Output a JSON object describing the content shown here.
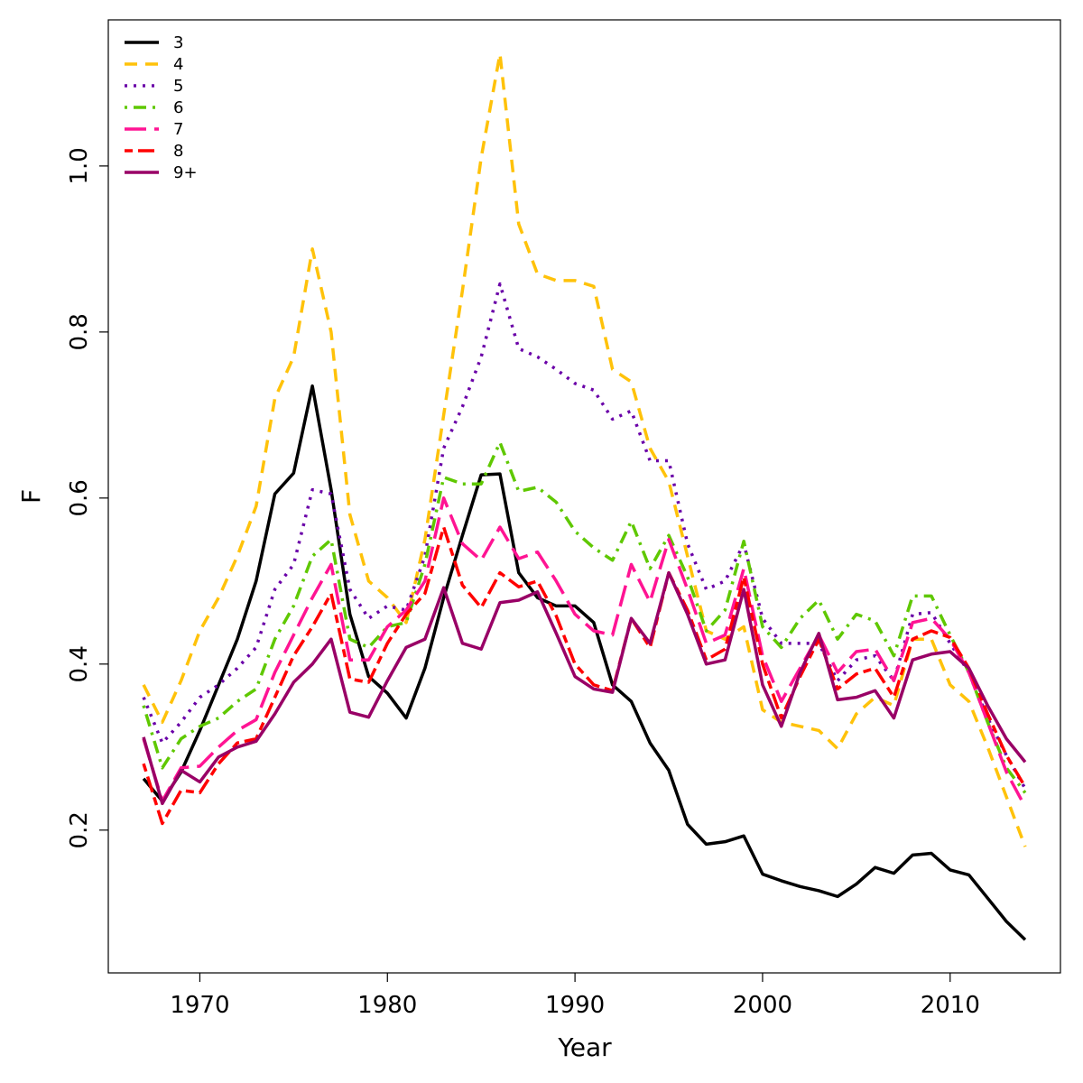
{
  "chart_data": {
    "type": "line",
    "x_label": "Year",
    "y_label": "F",
    "x": [
      1967,
      1968,
      1969,
      1970,
      1971,
      1972,
      1973,
      1974,
      1975,
      1976,
      1977,
      1978,
      1979,
      1980,
      1981,
      1982,
      1983,
      1984,
      1985,
      1986,
      1987,
      1988,
      1989,
      1990,
      1991,
      1992,
      1993,
      1994,
      1995,
      1996,
      1997,
      1998,
      1999,
      2000,
      2001,
      2002,
      2003,
      2004,
      2005,
      2006,
      2007,
      2008,
      2009,
      2010,
      2011,
      2012,
      2013,
      2014
    ],
    "xlim": [
      1965.12,
      2015.88
    ],
    "xticks": [
      1970,
      1980,
      1990,
      2000,
      2010
    ],
    "ylim": [
      0.028,
      1.176
    ],
    "yticks": [
      0.2,
      0.4,
      0.6,
      0.8,
      {
        "value": 1,
        "label": "1.0"
      }
    ],
    "legend": "top-left",
    "series": [
      {
        "name": "3",
        "color": "#000000",
        "linestyle": "solid",
        "values": [
          0.262,
          0.235,
          0.27,
          0.32,
          0.375,
          0.43,
          0.5,
          0.605,
          0.63,
          0.735,
          0.61,
          0.46,
          0.385,
          0.365,
          0.335,
          0.395,
          0.48,
          0.555,
          0.628,
          0.629,
          0.51,
          0.48,
          0.47,
          0.47,
          0.45,
          0.375,
          0.355,
          0.305,
          0.272,
          0.207,
          0.183,
          0.186,
          0.193,
          0.147,
          0.139,
          0.132,
          0.127,
          0.12,
          0.135,
          0.155,
          0.148,
          0.17,
          0.172,
          0.152,
          0.146,
          0.118,
          0.09,
          0.068
        ]
      },
      {
        "name": "4",
        "color": "#FFC20A",
        "linestyle": "dashed",
        "values": [
          0.375,
          0.33,
          0.38,
          0.44,
          0.48,
          0.53,
          0.59,
          0.72,
          0.77,
          0.9,
          0.8,
          0.58,
          0.5,
          0.48,
          0.45,
          0.55,
          0.7,
          0.85,
          1.01,
          1.135,
          0.93,
          0.87,
          0.862,
          0.862,
          0.855,
          0.755,
          0.74,
          0.66,
          0.62,
          0.53,
          0.44,
          0.43,
          0.445,
          0.345,
          0.33,
          0.325,
          0.32,
          0.298,
          0.34,
          0.36,
          0.35,
          0.43,
          0.43,
          0.375,
          0.355,
          0.3,
          0.24,
          0.18
        ]
      },
      {
        "name": "5",
        "color": "#6A00A8",
        "linestyle": "dotted",
        "values": [
          0.36,
          0.305,
          0.33,
          0.36,
          0.375,
          0.395,
          0.42,
          0.49,
          0.52,
          0.61,
          0.605,
          0.49,
          0.455,
          0.47,
          0.465,
          0.53,
          0.66,
          0.71,
          0.77,
          0.858,
          0.78,
          0.77,
          0.755,
          0.738,
          0.73,
          0.695,
          0.705,
          0.645,
          0.645,
          0.545,
          0.49,
          0.5,
          0.545,
          0.455,
          0.425,
          0.425,
          0.425,
          0.38,
          0.405,
          0.41,
          0.38,
          0.46,
          0.462,
          0.425,
          0.39,
          0.335,
          0.29,
          0.25
        ]
      },
      {
        "name": "6",
        "color": "#5FC800",
        "linestyle": "dotdash",
        "values": [
          0.35,
          0.275,
          0.31,
          0.325,
          0.335,
          0.355,
          0.37,
          0.43,
          0.47,
          0.53,
          0.55,
          0.43,
          0.42,
          0.445,
          0.45,
          0.52,
          0.625,
          0.617,
          0.617,
          0.667,
          0.608,
          0.613,
          0.595,
          0.56,
          0.54,
          0.525,
          0.572,
          0.515,
          0.555,
          0.505,
          0.44,
          0.465,
          0.548,
          0.445,
          0.42,
          0.455,
          0.477,
          0.43,
          0.46,
          0.452,
          0.41,
          0.482,
          0.482,
          0.435,
          0.39,
          0.33,
          0.275,
          0.245
        ]
      },
      {
        "name": "7",
        "color": "#FF1493",
        "linestyle": "longdash",
        "values": [
          0.31,
          0.235,
          0.275,
          0.277,
          0.3,
          0.32,
          0.333,
          0.39,
          0.435,
          0.48,
          0.52,
          0.405,
          0.405,
          0.445,
          0.465,
          0.5,
          0.6,
          0.545,
          0.525,
          0.565,
          0.527,
          0.535,
          0.5,
          0.46,
          0.44,
          0.435,
          0.52,
          0.475,
          0.55,
          0.49,
          0.425,
          0.435,
          0.515,
          0.41,
          0.355,
          0.395,
          0.435,
          0.39,
          0.415,
          0.418,
          0.38,
          0.45,
          0.455,
          0.43,
          0.39,
          0.33,
          0.27,
          0.228
        ]
      },
      {
        "name": "8",
        "color": "#FF0000",
        "linestyle": "twodash",
        "values": [
          0.28,
          0.208,
          0.248,
          0.245,
          0.28,
          0.305,
          0.31,
          0.36,
          0.41,
          0.445,
          0.485,
          0.382,
          0.378,
          0.425,
          0.46,
          0.485,
          0.565,
          0.495,
          0.468,
          0.51,
          0.493,
          0.5,
          0.458,
          0.4,
          0.375,
          0.368,
          0.455,
          0.42,
          0.51,
          0.465,
          0.405,
          0.418,
          0.505,
          0.4,
          0.335,
          0.385,
          0.43,
          0.37,
          0.388,
          0.395,
          0.36,
          0.43,
          0.44,
          0.432,
          0.395,
          0.34,
          0.29,
          0.252
        ]
      },
      {
        "name": "9+",
        "color": "#990066",
        "linestyle": "solid",
        "values": [
          0.312,
          0.232,
          0.272,
          0.258,
          0.288,
          0.3,
          0.307,
          0.34,
          0.378,
          0.4,
          0.43,
          0.342,
          0.336,
          0.38,
          0.42,
          0.43,
          0.492,
          0.425,
          0.418,
          0.474,
          0.477,
          0.487,
          0.437,
          0.385,
          0.37,
          0.366,
          0.455,
          0.425,
          0.51,
          0.46,
          0.4,
          0.405,
          0.49,
          0.375,
          0.325,
          0.39,
          0.437,
          0.357,
          0.36,
          0.368,
          0.335,
          0.405,
          0.412,
          0.415,
          0.395,
          0.35,
          0.31,
          0.282
        ]
      }
    ]
  }
}
